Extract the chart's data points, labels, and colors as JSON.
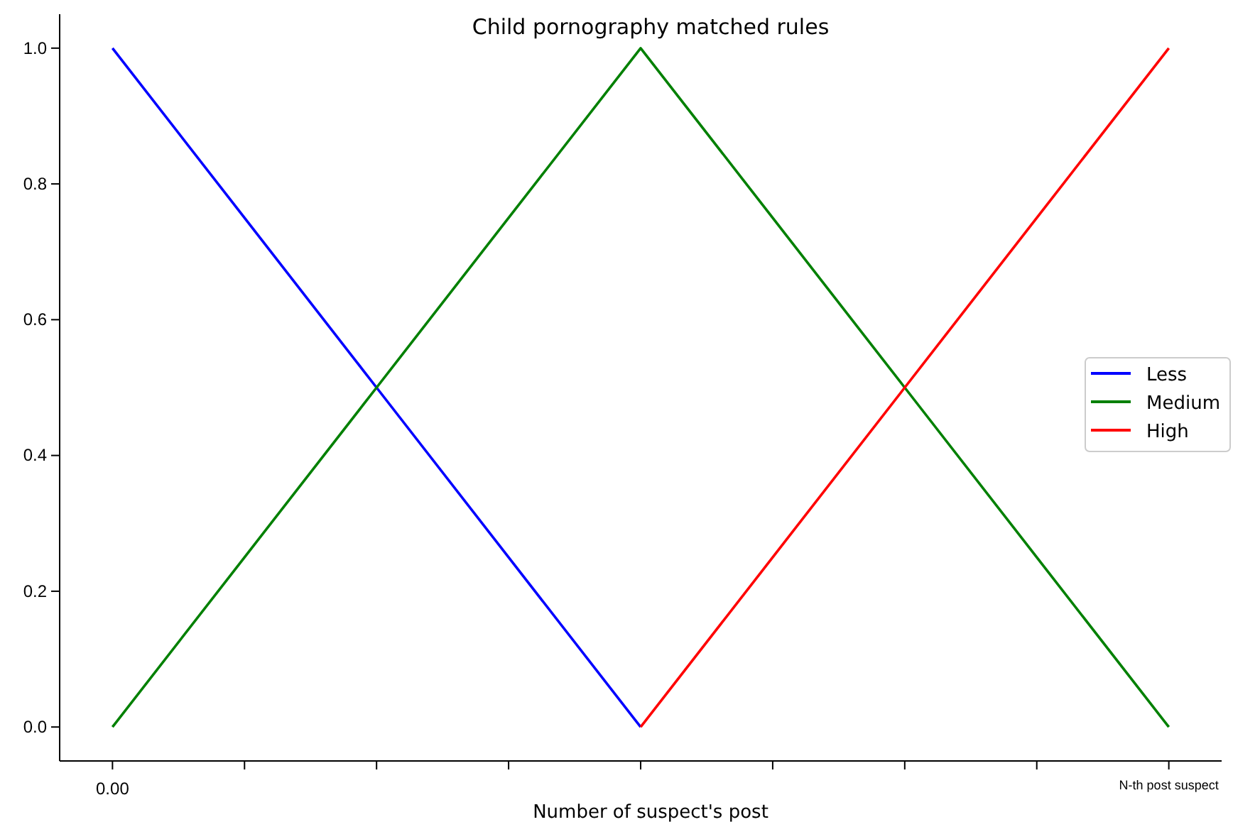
{
  "chart_data": {
    "type": "line",
    "title": "Child pornography matched rules",
    "xlabel": "Number of suspect's post",
    "categories": [
      "0.00",
      null,
      null,
      null,
      null,
      null,
      null,
      null,
      "N-th post suspect"
    ],
    "ylim": [
      -0.05,
      1.05
    ],
    "yticks": [
      {
        "value": 0,
        "label": "0.0"
      },
      {
        "value": 0.2,
        "label": "0.2"
      },
      {
        "value": 0.4,
        "label": "0.4"
      },
      {
        "value": 0.6,
        "label": "0.6"
      },
      {
        "value": 0.8,
        "label": "0.8"
      },
      {
        "value": 1,
        "label": "1.0"
      }
    ],
    "legend": "right",
    "grid": false,
    "series": [
      {
        "name": "Less",
        "color": "#0000ff",
        "values": [
          1,
          0.75,
          0.5,
          0.25,
          0,
          null,
          null,
          null,
          null
        ]
      },
      {
        "name": "Medium",
        "color": "#008000",
        "values": [
          0,
          0.25,
          0.5,
          0.75,
          1,
          0.75,
          0.5,
          0.25,
          0
        ]
      },
      {
        "name": "High",
        "color": "#ff0000",
        "values": [
          null,
          null,
          null,
          null,
          0,
          0.25,
          0.5,
          0.75,
          1
        ]
      }
    ]
  }
}
